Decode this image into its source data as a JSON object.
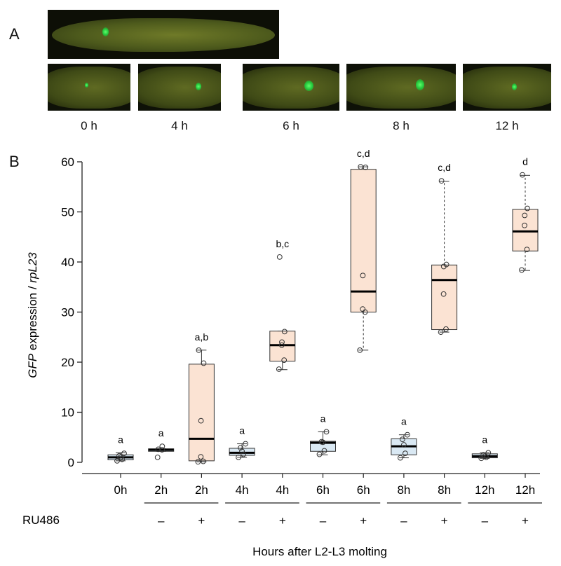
{
  "panel_a": {
    "letter": "A",
    "time_labels": [
      "0 h",
      "4 h",
      "6 h",
      "8 h",
      "12 h"
    ]
  },
  "panel_b": {
    "letter": "B"
  },
  "colors": {
    "ru_plus_fill": "#fbe3d3",
    "ru_minus_fill": "#d9e8f3",
    "box_stroke": "#333333",
    "gfp_green": "#33dd44"
  },
  "chart_data": {
    "type": "box",
    "ylabel_italic": "GFP",
    "ylabel_mid": " expression / ",
    "ylabel_italic2": "rpL23",
    "xlabel": "Hours after L2-L3 molting",
    "ylim": [
      0,
      60
    ],
    "yticks": [
      0,
      10,
      20,
      30,
      40,
      50,
      60
    ],
    "treatment_label": "RU486",
    "groups": [
      {
        "label": "0h",
        "ru486": "",
        "q1": 0.5,
        "median": 1.0,
        "q3": 1.5,
        "whisker_low": 0.3,
        "whisker_high": 1.9,
        "points": [
          0.3,
          0.6,
          1.0,
          1.3,
          1.8
        ],
        "letters": "a"
      },
      {
        "label": "2h",
        "ru486": "–",
        "q1": 2.2,
        "median": 2.5,
        "q3": 2.7,
        "whisker_low": 2.2,
        "whisker_high": 2.7,
        "points": [
          1.0,
          2.5,
          3.2,
          2.6
        ],
        "letters": "a"
      },
      {
        "label": "2h",
        "ru486": "+",
        "q1": 0.3,
        "median": 4.7,
        "q3": 19.6,
        "whisker_low": 0.1,
        "whisker_high": 22.4,
        "points": [
          0.1,
          0.2,
          1.1,
          8.3,
          19.8,
          22.4
        ],
        "letters": "a,b"
      },
      {
        "label": "4h",
        "ru486": "–",
        "q1": 1.4,
        "median": 1.9,
        "q3": 2.8,
        "whisker_low": 1.0,
        "whisker_high": 3.7,
        "points": [
          1.0,
          1.6,
          2.2,
          2.9,
          3.7
        ],
        "letters": "a"
      },
      {
        "label": "4h",
        "ru486": "+",
        "q1": 20.2,
        "median": 23.4,
        "q3": 26.2,
        "whisker_low": 18.5,
        "whisker_high": 26.2,
        "points": [
          18.6,
          20.4,
          23.4,
          24.0,
          26.1,
          41.0
        ],
        "letters": "b,c"
      },
      {
        "label": "6h",
        "ru486": "–",
        "q1": 2.2,
        "median": 3.9,
        "q3": 4.2,
        "whisker_low": 1.5,
        "whisker_high": 6.1,
        "points": [
          1.6,
          2.3,
          4.0,
          4.1,
          6.1
        ],
        "letters": "a"
      },
      {
        "label": "6h",
        "ru486": "+",
        "q1": 30.0,
        "median": 34.1,
        "q3": 58.5,
        "whisker_low": 22.4,
        "whisker_high": 59.0,
        "points": [
          22.4,
          30.0,
          30.6,
          37.3,
          58.9,
          59.0
        ],
        "letters": "c,d"
      },
      {
        "label": "8h",
        "ru486": "–",
        "q1": 1.5,
        "median": 3.2,
        "q3": 4.7,
        "whisker_low": 0.9,
        "whisker_high": 5.5,
        "points": [
          0.9,
          1.8,
          3.5,
          4.6,
          5.5
        ],
        "letters": "a"
      },
      {
        "label": "8h",
        "ru486": "+",
        "q1": 26.5,
        "median": 36.4,
        "q3": 39.4,
        "whisker_low": 26.0,
        "whisker_high": 56.1,
        "points": [
          26.0,
          26.6,
          33.6,
          39.1,
          39.5,
          56.2
        ],
        "letters": "c,d"
      },
      {
        "label": "12h",
        "ru486": "–",
        "q1": 0.9,
        "median": 1.2,
        "q3": 1.7,
        "whisker_low": 0.8,
        "whisker_high": 1.9,
        "points": [
          0.8,
          1.0,
          1.2,
          1.5,
          1.9
        ],
        "letters": "a"
      },
      {
        "label": "12h",
        "ru486": "+",
        "q1": 42.2,
        "median": 46.1,
        "q3": 50.5,
        "whisker_low": 38.3,
        "whisker_high": 57.3,
        "points": [
          38.4,
          42.5,
          47.3,
          49.3,
          50.7,
          57.4
        ],
        "letters": "d"
      }
    ]
  }
}
